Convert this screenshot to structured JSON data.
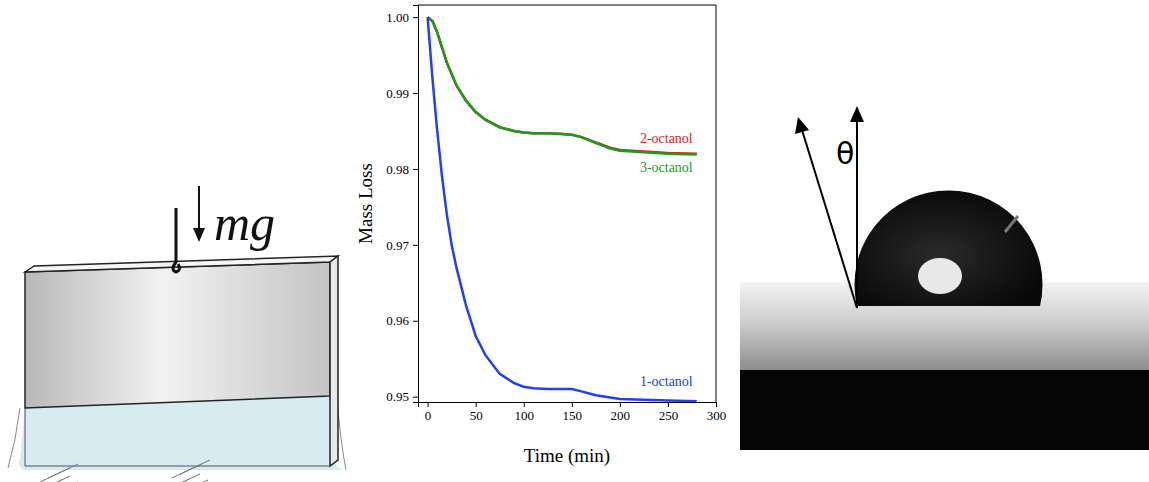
{
  "diagram": {
    "label": "mg"
  },
  "chart_data": {
    "type": "line",
    "x_label": "Time (min)",
    "y_label": "Mass Loss",
    "x": [
      0,
      5,
      10,
      15,
      20,
      25,
      30,
      40,
      50,
      60,
      75,
      90,
      100,
      110,
      125,
      140,
      150,
      160,
      175,
      190,
      200,
      225,
      250,
      280
    ],
    "series": [
      {
        "name": "2-octanol",
        "color": "#e0211b",
        "values": [
          1.0,
          0.9995,
          0.998,
          0.996,
          0.994,
          0.9925,
          0.991,
          0.989,
          0.9875,
          0.9865,
          0.9855,
          0.985,
          0.9848,
          0.9847,
          0.9847,
          0.9846,
          0.9845,
          0.9842,
          0.9835,
          0.9828,
          0.9825,
          0.9823,
          0.9821,
          0.982
        ]
      },
      {
        "name": "3-octanol",
        "color": "#1f9a1f",
        "values": [
          1.0,
          0.9995,
          0.998,
          0.996,
          0.994,
          0.9925,
          0.991,
          0.989,
          0.9875,
          0.9865,
          0.9855,
          0.985,
          0.9848,
          0.9847,
          0.9847,
          0.9846,
          0.9845,
          0.9842,
          0.9834,
          0.9827,
          0.9824,
          0.9822,
          0.982,
          0.9819
        ]
      },
      {
        "name": "1-octanol",
        "color": "#2340f0",
        "values": [
          1.0,
          0.992,
          0.985,
          0.979,
          0.974,
          0.97,
          0.967,
          0.962,
          0.958,
          0.9555,
          0.953,
          0.9518,
          0.9513,
          0.9511,
          0.951,
          0.951,
          0.951,
          0.9507,
          0.9502,
          0.9499,
          0.9497,
          0.9496,
          0.9495,
          0.9494
        ]
      }
    ],
    "xlim": [
      -10,
      300
    ],
    "ylim": [
      0.9493,
      1.0016
    ],
    "xticks": [
      0,
      50,
      100,
      150,
      200,
      250,
      300
    ],
    "yticks": [
      0.95,
      0.96,
      0.97,
      0.98,
      0.99,
      {
        "value": 1,
        "label": "1.00"
      }
    ]
  },
  "photo": {
    "label": "θ"
  }
}
